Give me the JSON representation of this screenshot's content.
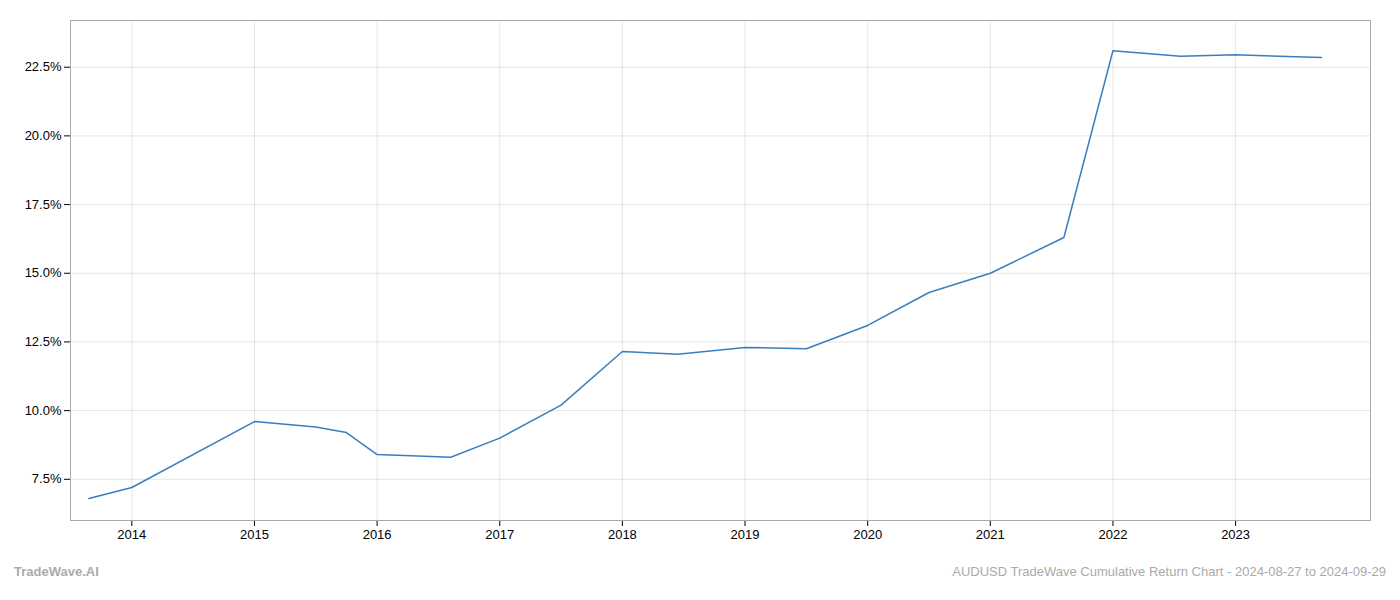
{
  "chart_data": {
    "type": "line",
    "x": [
      2013.65,
      2014.0,
      2015.0,
      2015.5,
      2015.75,
      2016.0,
      2016.6,
      2017.0,
      2017.5,
      2018.0,
      2018.45,
      2019.0,
      2019.5,
      2020.0,
      2020.5,
      2021.0,
      2021.6,
      2022.0,
      2022.55,
      2023.0,
      2023.7
    ],
    "values": [
      6.8,
      7.2,
      9.6,
      9.4,
      9.2,
      8.4,
      8.3,
      9.0,
      10.2,
      12.15,
      12.05,
      12.3,
      12.25,
      13.1,
      14.3,
      15.0,
      16.3,
      23.1,
      22.9,
      22.95,
      22.85
    ],
    "color": "#3a7ebf",
    "xlim": [
      2013.5,
      2024.1
    ],
    "xticks": [
      2014,
      2015,
      2016,
      2017,
      2018,
      2019,
      2020,
      2021,
      2022,
      2023
    ],
    "ylim": [
      6.0,
      24.2
    ],
    "yticks": [
      {
        "value": 7.5,
        "label": "7.5%"
      },
      {
        "value": 10.0,
        "label": "10.0%"
      },
      {
        "value": 12.5,
        "label": "12.5%"
      },
      {
        "value": 15.0,
        "label": "15.0%"
      },
      {
        "value": 17.5,
        "label": "17.5%"
      },
      {
        "value": 20.0,
        "label": "20.0%"
      },
      {
        "value": 22.5,
        "label": "22.5%"
      }
    ],
    "grid": true,
    "annotations": [
      "TradeWave.AI",
      "AUDUSD TradeWave Cumulative Return Chart - 2024-08-27 to 2024-09-29"
    ]
  }
}
